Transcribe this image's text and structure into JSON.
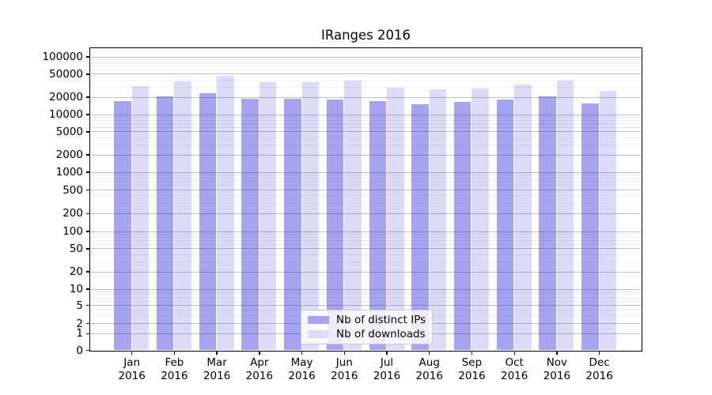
{
  "chart_data": {
    "type": "bar",
    "title": "IRanges 2016",
    "categories": [
      "Jan",
      "Feb",
      "Mar",
      "Apr",
      "May",
      "Jun",
      "Jul",
      "Aug",
      "Sep",
      "Oct",
      "Nov",
      "Dec"
    ],
    "category_year": "2016",
    "series": [
      {
        "name": "Nb of distinct IPs",
        "color": "#a5a5f1",
        "values": [
          16700,
          20400,
          23200,
          18700,
          18700,
          18100,
          16600,
          14800,
          16100,
          18100,
          20400,
          15400
        ]
      },
      {
        "name": "Nb of downloads",
        "color": "#dcdcf8",
        "values": [
          30300,
          36800,
          46000,
          36100,
          36100,
          38400,
          28600,
          27200,
          28300,
          32800,
          37900,
          25400
        ]
      }
    ],
    "y_ticks": [
      100000,
      50000,
      20000,
      10000,
      5000,
      2000,
      1000,
      500,
      200,
      100,
      50,
      20,
      10,
      5,
      2,
      1,
      0
    ],
    "y_scale": "symlog",
    "ylim": [
      0,
      140000
    ],
    "xlabel": "",
    "ylabel": "",
    "legend_position": "inside-bottom-center",
    "grid": {
      "horizontal_major": true,
      "horizontal_minor": true,
      "vertical": false
    }
  },
  "colors": {
    "background": "#ffffff",
    "axis": "#000000",
    "major_grid": "#c2c2c2",
    "minor_grid": "#ededed",
    "text": "#000000"
  }
}
